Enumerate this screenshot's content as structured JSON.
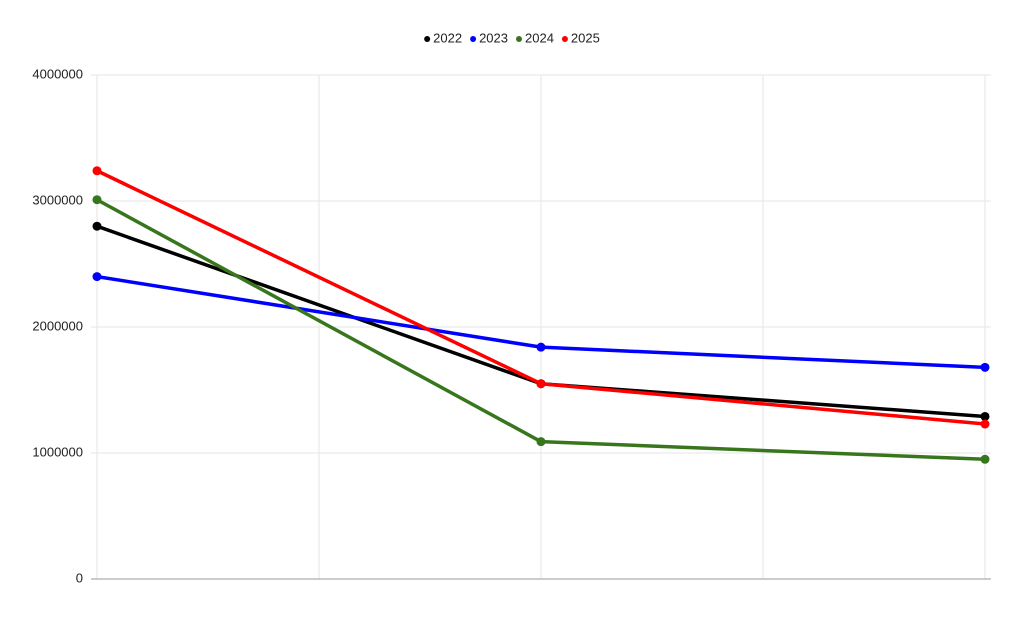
{
  "chart_data": {
    "type": "line",
    "categories": [
      null,
      null,
      null
    ],
    "series": [
      {
        "name": "2022",
        "color": "#000000",
        "values": [
          2800000,
          1550000,
          1290000
        ]
      },
      {
        "name": "2023",
        "color": "#0000ff",
        "values": [
          2400000,
          1840000,
          1680000
        ]
      },
      {
        "name": "2024",
        "color": "#38761d",
        "values": [
          3010000,
          1090000,
          950000
        ]
      },
      {
        "name": "2025",
        "color": "#ff0000",
        "values": [
          3240000,
          1550000,
          1230000
        ]
      }
    ],
    "ylim": [
      0,
      4000000
    ],
    "yticks": [
      0,
      1000000,
      2000000,
      3000000,
      4000000
    ],
    "grid": true,
    "legend": "top"
  }
}
